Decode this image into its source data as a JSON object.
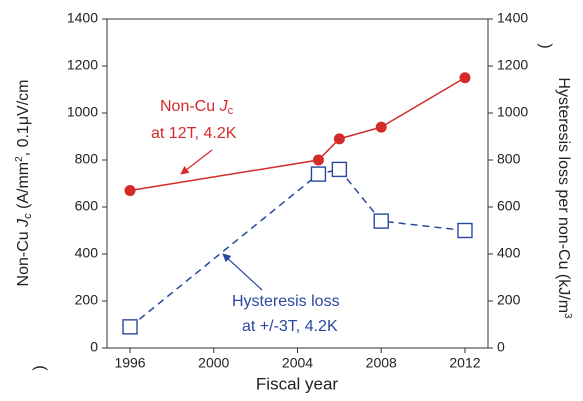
{
  "chart_data": {
    "type": "line",
    "x_label": "Fiscal year",
    "y_label": [
      "Non-Cu ",
      "J",
      "c",
      " (A/mm",
      "2",
      ", 0.1μV/cm",
      ")"
    ],
    "y2_label": [
      "Hysteresis loss per non-Cu (kJ/m",
      "3",
      ")"
    ],
    "xlim": [
      1994.9,
      2013.1
    ],
    "xticks": [
      1996,
      2000,
      2004,
      2008,
      2012
    ],
    "ylim": [
      0,
      1400
    ],
    "yticks": [
      0,
      200,
      400,
      600,
      800,
      1000,
      1200,
      1400
    ],
    "y2lim": [
      0,
      1400
    ],
    "y2ticks": [
      0,
      200,
      400,
      600,
      800,
      1000,
      1200,
      1400
    ],
    "series": [
      {
        "name": [
          "Non-Cu ",
          "J",
          "c",
          "at 12T, 4.2K"
        ],
        "color": "#d42a2a",
        "marker": "circle",
        "dashed": false,
        "x": [
          1996,
          2005,
          2006,
          2008,
          2012
        ],
        "values": [
          670,
          800,
          890,
          940,
          1150
        ]
      },
      {
        "name": [
          "Hysteresis loss",
          "at +/-3T, 4.2K"
        ],
        "color": "#2a48a0",
        "marker": "square",
        "dashed": true,
        "axis": "y2",
        "x": [
          1996,
          2005,
          2006,
          2008,
          2012
        ],
        "values": [
          90,
          740,
          760,
          540,
          500
        ]
      }
    ]
  }
}
